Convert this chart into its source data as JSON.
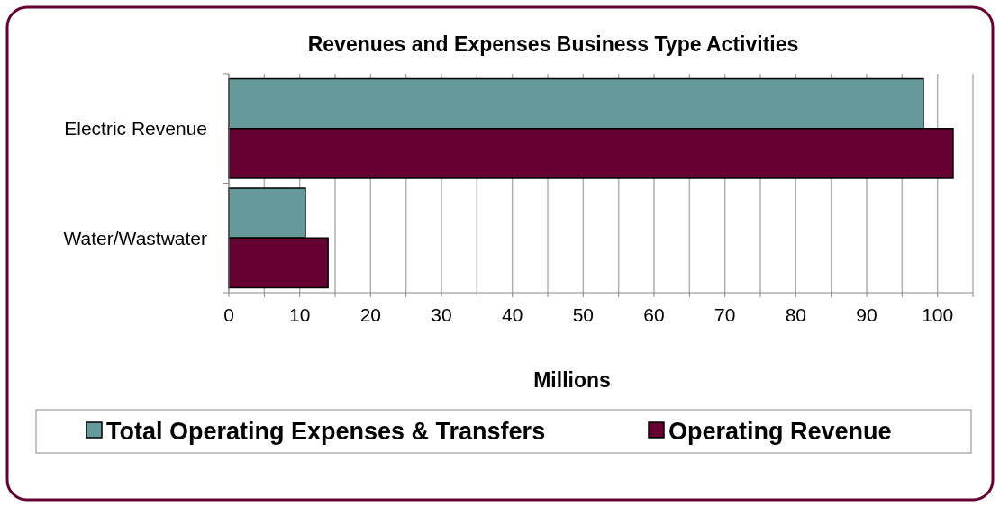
{
  "chart_data": {
    "type": "bar",
    "orientation": "horizontal",
    "title": "Revenues and Expenses Business Type Activities",
    "xlabel": "Millions",
    "categories": [
      "Electric Revenue",
      "Water/Wastwater"
    ],
    "series": [
      {
        "name": "Total Operating Expenses & Transfers",
        "color": "#669999",
        "values": [
          98,
          10.8
        ]
      },
      {
        "name": "Operating Revenue",
        "color": "#660033",
        "values": [
          102.2,
          14
        ]
      }
    ],
    "xlim": [
      0,
      105
    ],
    "xticks": [
      0,
      {
        "value": 5,
        "label": null
      },
      10,
      {
        "value": 15,
        "label": null
      },
      20,
      {
        "value": 25,
        "label": null
      },
      30,
      {
        "value": 35,
        "label": null
      },
      40,
      {
        "value": 45,
        "label": null
      },
      50,
      {
        "value": 55,
        "label": null
      },
      60,
      {
        "value": 65,
        "label": null
      },
      70,
      {
        "value": 75,
        "label": null
      },
      80,
      {
        "value": 85,
        "label": null
      },
      90,
      {
        "value": 95,
        "label": null
      },
      100,
      {
        "value": 105,
        "label": null
      }
    ],
    "grid": "x",
    "legend": "bottom"
  }
}
